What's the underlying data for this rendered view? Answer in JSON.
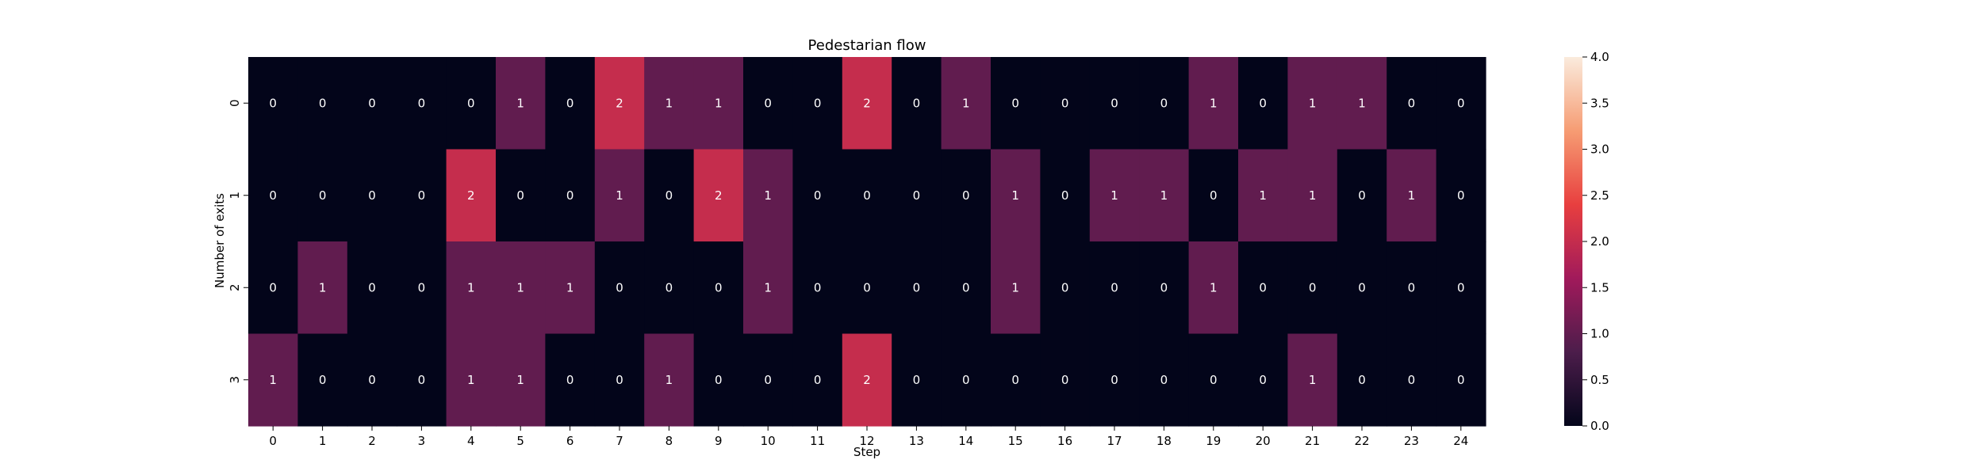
{
  "chart_data": {
    "type": "heatmap",
    "title": "Pedestarian flow",
    "xlabel": "Step",
    "ylabel": "Number of exits",
    "x_categories": [
      "0",
      "1",
      "2",
      "3",
      "4",
      "5",
      "6",
      "7",
      "8",
      "9",
      "10",
      "11",
      "12",
      "13",
      "14",
      "15",
      "16",
      "17",
      "18",
      "19",
      "20",
      "21",
      "22",
      "23",
      "24"
    ],
    "y_categories": [
      "0",
      "1",
      "2",
      "3"
    ],
    "values": [
      [
        0,
        0,
        0,
        0,
        0,
        1,
        0,
        2,
        1,
        1,
        0,
        0,
        2,
        0,
        1,
        0,
        0,
        0,
        0,
        1,
        0,
        1,
        1,
        0,
        0
      ],
      [
        0,
        0,
        0,
        0,
        2,
        0,
        0,
        1,
        0,
        2,
        1,
        0,
        0,
        0,
        0,
        1,
        0,
        1,
        1,
        0,
        1,
        1,
        0,
        1,
        0
      ],
      [
        0,
        1,
        0,
        0,
        1,
        1,
        1,
        0,
        0,
        0,
        1,
        0,
        0,
        0,
        0,
        1,
        0,
        0,
        0,
        1,
        0,
        0,
        0,
        0,
        0
      ],
      [
        1,
        0,
        0,
        0,
        1,
        1,
        0,
        0,
        1,
        0,
        0,
        0,
        2,
        0,
        0,
        0,
        0,
        0,
        0,
        0,
        0,
        1,
        0,
        0,
        0
      ]
    ],
    "annotate": true,
    "colorbar": {
      "range": [
        0,
        4
      ],
      "ticks": [
        "0.0",
        "0.5",
        "1.0",
        "1.5",
        "2.0",
        "2.5",
        "3.0",
        "3.5",
        "4.0"
      ],
      "colormap": "rocket",
      "stops": [
        "#03051a",
        "#4c1d4b",
        "#a11a5b",
        "#e83f3f",
        "#f69c73",
        "#faebdd"
      ]
    },
    "grid": false
  }
}
